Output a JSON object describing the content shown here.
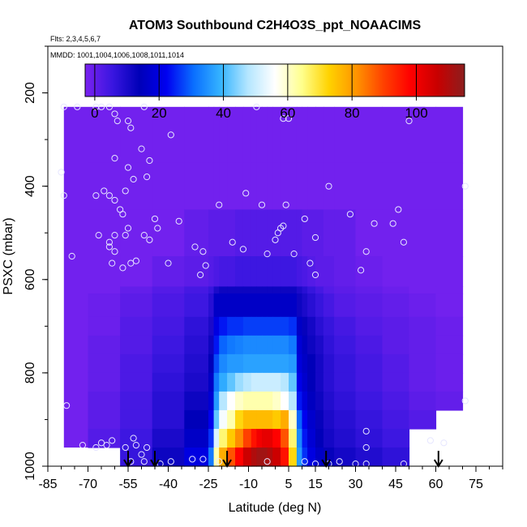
{
  "chart_data": {
    "type": "heatmap",
    "title": "ATOM3 Southbound C2H4O3S_ppt_NOAACIMS",
    "notes": {
      "flights": "Flts: 2,3,4,5,6,7",
      "dates": "MMDD: 1001,1004,1006,1008,1011,1014"
    },
    "xlabel": "Latitude (deg N)",
    "ylabel": "PSXC (mbar)",
    "xlim": [
      -85,
      85
    ],
    "ylim": [
      1000,
      100
    ],
    "x_ticks": [
      "-85",
      "-70",
      "-55",
      "-40",
      "-25",
      "-10",
      "5",
      "15",
      "30",
      "45",
      "60",
      "75"
    ],
    "y_ticks": [
      "200",
      "400",
      "600",
      "800",
      "1000"
    ],
    "colorbar": {
      "range": [
        -3,
        115
      ],
      "ticks": [
        "0",
        "20",
        "40",
        "60",
        "80",
        "100"
      ],
      "colors": [
        "#7a22f0",
        "#3a16e0",
        "#0000b8",
        "#0000f0",
        "#0a6eff",
        "#35b4ff",
        "#b4e6ff",
        "#ffffff",
        "#ffff8c",
        "#ffd200",
        "#ff9400",
        "#ff4200",
        "#ff0000",
        "#c80000",
        "#8c1e1e"
      ]
    },
    "arrows_latitude": [
      -55,
      -45,
      -18,
      19,
      61
    ],
    "field": {
      "lat_edges": [
        -70,
        -58,
        -46,
        -34,
        -25,
        -23,
        -21,
        -18,
        -15,
        -12,
        -9,
        -7,
        -5,
        -3,
        -1,
        2,
        5,
        8,
        10,
        12,
        15,
        18,
        22,
        30,
        40,
        50,
        60,
        70
      ],
      "p_edges": [
        230,
        350,
        450,
        550,
        615,
        630,
        680,
        720,
        760,
        800,
        840,
        880,
        920,
        960,
        1000
      ],
      "values": [
        [
          -2,
          -2,
          -2,
          -2,
          -2,
          -2,
          -2,
          -2,
          -2,
          -2,
          -2,
          -2,
          -2,
          -2,
          -2,
          -2,
          -2,
          -2,
          -2,
          -2,
          -2,
          -2,
          -2,
          -2,
          -2,
          -2,
          -2
        ],
        [
          -2,
          -2,
          -2,
          -2,
          -2,
          -2,
          -2,
          -2,
          -2,
          -2,
          -2,
          -2,
          -2,
          -2,
          -2,
          -2,
          -2,
          -2,
          -2,
          -2,
          -2,
          -2,
          -2,
          -2,
          -2,
          -2,
          -2
        ],
        [
          -2,
          -2,
          -2,
          0,
          1,
          1,
          1,
          1,
          2,
          2,
          2,
          2,
          2,
          2,
          2,
          2,
          2,
          2,
          1,
          1,
          1,
          0,
          0,
          -2,
          -2,
          -2,
          -2
        ],
        [
          -2,
          -2,
          0,
          1,
          2,
          3,
          4,
          4,
          5,
          5,
          5,
          5,
          5,
          5,
          5,
          5,
          5,
          4,
          3,
          2,
          1,
          1,
          0,
          -1,
          -2,
          -2,
          -2
        ],
        [
          -2,
          0,
          2,
          4,
          6,
          10,
          12,
          12,
          12,
          12,
          12,
          12,
          12,
          12,
          12,
          12,
          12,
          10,
          8,
          6,
          4,
          2,
          1,
          0,
          -1,
          -2,
          -2
        ],
        [
          -1,
          1,
          3,
          5,
          8,
          16,
          16,
          16,
          16,
          16,
          16,
          16,
          16,
          16,
          16,
          16,
          16,
          12,
          10,
          8,
          6,
          4,
          2,
          1,
          0,
          -1,
          -2
        ],
        [
          -1,
          2,
          4,
          7,
          10,
          20,
          24,
          26,
          26,
          27,
          27,
          27,
          27,
          27,
          27,
          27,
          26,
          16,
          13,
          11,
          8,
          6,
          4,
          2,
          1,
          0,
          -1
        ],
        [
          0,
          2,
          5,
          8,
          12,
          24,
          30,
          32,
          33,
          34,
          34,
          34,
          34,
          34,
          34,
          34,
          32,
          18,
          15,
          12,
          10,
          7,
          5,
          3,
          1,
          0,
          -1
        ],
        [
          0,
          3,
          6,
          9,
          14,
          28,
          34,
          36,
          36,
          37,
          37,
          37,
          37,
          37,
          37,
          37,
          36,
          19,
          16,
          14,
          11,
          8,
          6,
          4,
          2,
          0,
          -1
        ],
        [
          0,
          3,
          7,
          10,
          16,
          32,
          38,
          42,
          46,
          48,
          50,
          50,
          50,
          50,
          50,
          48,
          42,
          21,
          17,
          14,
          11,
          8,
          6,
          4,
          2,
          0,
          -1
        ],
        [
          1,
          4,
          8,
          12,
          18,
          36,
          48,
          56,
          60,
          62,
          62,
          62,
          62,
          62,
          60,
          56,
          48,
          24,
          19,
          15,
          12,
          9,
          7,
          5,
          3,
          1,
          0
        ],
        [
          1,
          4,
          8,
          14,
          22,
          42,
          55,
          62,
          72,
          76,
          76,
          76,
          76,
          76,
          74,
          78,
          60,
          30,
          22,
          17,
          13,
          10,
          8,
          6,
          4,
          2,
          0
        ],
        [
          2,
          5,
          10,
          16,
          26,
          52,
          66,
          74,
          82,
          90,
          96,
          100,
          102,
          102,
          98,
          88,
          66,
          34,
          24,
          18,
          14,
          11,
          9,
          7,
          5,
          3,
          1
        ],
        [
          2,
          6,
          12,
          20,
          32,
          62,
          78,
          88,
          98,
          106,
          110,
          112,
          112,
          110,
          106,
          96,
          72,
          36,
          26,
          20,
          16,
          13,
          11,
          9,
          7,
          5,
          3
        ]
      ]
    },
    "field_missing": [
      {
        "lat0": -70,
        "lat1": -58,
        "p0": 960,
        "p1": 1000
      },
      {
        "lat0": 50,
        "lat1": 70,
        "p0": 920,
        "p1": 1000
      },
      {
        "lat0": 60,
        "lat1": 70,
        "p0": 880,
        "p1": 920
      }
    ],
    "left_strip": {
      "lat0": -79,
      "lat1": -70,
      "p0": 230,
      "p1": 960,
      "value": -2
    },
    "top_right_extensions": [
      {
        "lat0": 50,
        "lat1": 56,
        "p0": 230,
        "p1": 250,
        "value": -2
      },
      {
        "lat0": 50,
        "lat1": 56,
        "p0": 250,
        "p1": 300,
        "value": -2
      },
      {
        "lat0": 56,
        "lat1": 66,
        "p0": 300,
        "p1": 350,
        "value": -2
      },
      {
        "lat0": 60,
        "lat1": 70,
        "p0": 350,
        "p1": 600,
        "value": -2
      }
    ],
    "samples": [
      {
        "lat": -79,
        "p": 230
      },
      {
        "lat": -74,
        "p": 230
      },
      {
        "lat": -67,
        "p": 230
      },
      {
        "lat": -65,
        "p": 230
      },
      {
        "lat": -62,
        "p": 230
      },
      {
        "lat": -60,
        "p": 245
      },
      {
        "lat": -59,
        "p": 260
      },
      {
        "lat": -49,
        "p": 230
      },
      {
        "lat": -55,
        "p": 260
      },
      {
        "lat": -54,
        "p": 275
      },
      {
        "lat": -60,
        "p": 340
      },
      {
        "lat": -50,
        "p": 320
      },
      {
        "lat": -47,
        "p": 345
      },
      {
        "lat": -48,
        "p": 380
      },
      {
        "lat": -39,
        "p": 290
      },
      {
        "lat": -58,
        "p": 450
      },
      {
        "lat": -56,
        "p": 410
      },
      {
        "lat": -55,
        "p": 360
      },
      {
        "lat": -53,
        "p": 385
      },
      {
        "lat": -80,
        "p": 370
      },
      {
        "lat": -79,
        "p": 420
      },
      {
        "lat": -67,
        "p": 420
      },
      {
        "lat": -64,
        "p": 410
      },
      {
        "lat": -62,
        "p": 420
      },
      {
        "lat": -60,
        "p": 430
      },
      {
        "lat": -57,
        "p": 460
      },
      {
        "lat": -62,
        "p": 530
      },
      {
        "lat": -55,
        "p": 490
      },
      {
        "lat": -56,
        "p": 505
      },
      {
        "lat": -60,
        "p": 505
      },
      {
        "lat": -66,
        "p": 505
      },
      {
        "lat": -62,
        "p": 520
      },
      {
        "lat": -60,
        "p": 540
      },
      {
        "lat": -61,
        "p": 565
      },
      {
        "lat": -57,
        "p": 575
      },
      {
        "lat": -54,
        "p": 565
      },
      {
        "lat": -52,
        "p": 560
      },
      {
        "lat": -49,
        "p": 505
      },
      {
        "lat": -47,
        "p": 515
      },
      {
        "lat": -45,
        "p": 470
      },
      {
        "lat": -44,
        "p": 490
      },
      {
        "lat": -40,
        "p": 565
      },
      {
        "lat": -36,
        "p": 475
      },
      {
        "lat": -30,
        "p": 530
      },
      {
        "lat": -28,
        "p": 590
      },
      {
        "lat": -27,
        "p": 540
      },
      {
        "lat": -26,
        "p": 570
      },
      {
        "lat": -76,
        "p": 550
      },
      {
        "lat": -21,
        "p": 440
      },
      {
        "lat": -11,
        "p": 415
      },
      {
        "lat": -16,
        "p": 520
      },
      {
        "lat": -12,
        "p": 535
      },
      {
        "lat": -5,
        "p": 440
      },
      {
        "lat": -3,
        "p": 545
      },
      {
        "lat": 0,
        "p": 515
      },
      {
        "lat": 1,
        "p": 500
      },
      {
        "lat": 2,
        "p": 490
      },
      {
        "lat": 3,
        "p": 485
      },
      {
        "lat": 4,
        "p": 440
      },
      {
        "lat": 7,
        "p": 545
      },
      {
        "lat": 11,
        "p": 470
      },
      {
        "lat": 13,
        "p": 565
      },
      {
        "lat": 15,
        "p": 590
      },
      {
        "lat": 15,
        "p": 510
      },
      {
        "lat": 20,
        "p": 400
      },
      {
        "lat": 28,
        "p": 460
      },
      {
        "lat": 32,
        "p": 580
      },
      {
        "lat": 37,
        "p": 480
      },
      {
        "lat": 44,
        "p": 480
      },
      {
        "lat": 46,
        "p": 450
      },
      {
        "lat": 48,
        "p": 520
      },
      {
        "lat": 34,
        "p": 540
      },
      {
        "lat": 50,
        "p": 260
      },
      {
        "lat": -7,
        "p": 230
      },
      {
        "lat": 3,
        "p": 255
      },
      {
        "lat": 5,
        "p": 255
      },
      {
        "lat": 71,
        "p": 400
      },
      {
        "lat": 71,
        "p": 860
      },
      {
        "lat": -78,
        "p": 870
      },
      {
        "lat": -65,
        "p": 950
      },
      {
        "lat": -67,
        "p": 960
      },
      {
        "lat": -63,
        "p": 955
      },
      {
        "lat": -61,
        "p": 945
      },
      {
        "lat": -56,
        "p": 960
      },
      {
        "lat": -53,
        "p": 940
      },
      {
        "lat": -52,
        "p": 955
      },
      {
        "lat": -48,
        "p": 960
      },
      {
        "lat": -49,
        "p": 990
      },
      {
        "lat": -54,
        "p": 990
      },
      {
        "lat": -43,
        "p": 995
      },
      {
        "lat": -39,
        "p": 990
      },
      {
        "lat": -31,
        "p": 985
      },
      {
        "lat": -27,
        "p": 985
      },
      {
        "lat": -21,
        "p": 990
      },
      {
        "lat": -3,
        "p": 990
      },
      {
        "lat": 11,
        "p": 990
      },
      {
        "lat": 15,
        "p": 995
      },
      {
        "lat": 20,
        "p": 995
      },
      {
        "lat": 24,
        "p": 990
      },
      {
        "lat": 30,
        "p": 995
      },
      {
        "lat": 34,
        "p": 995
      },
      {
        "lat": 34,
        "p": 925
      },
      {
        "lat": 34,
        "p": 960
      },
      {
        "lat": 48,
        "p": 995
      },
      {
        "lat": 63,
        "p": 950
      },
      {
        "lat": 58,
        "p": 945
      },
      {
        "lat": -50,
        "p": 975
      },
      {
        "lat": -72,
        "p": 955
      }
    ]
  }
}
